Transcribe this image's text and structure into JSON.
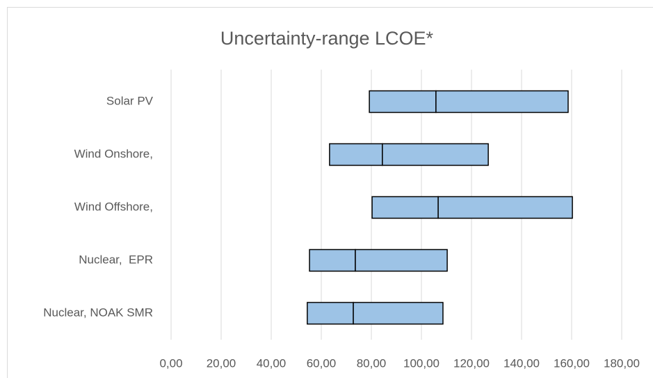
{
  "chart_data": {
    "type": "floating-bar",
    "title": "Uncertainty-range LCOE*",
    "categories": [
      "Solar PV",
      "Wind Onshore,",
      "Wind Offshore,",
      "Nuclear,  EPR",
      "Nuclear, NOAK SMR"
    ],
    "low": [
      79.2,
      63.3,
      80.3,
      55.3,
      54.4
    ],
    "mid": [
      105.8,
      84.4,
      106.7,
      73.6,
      72.8
    ],
    "high": [
      158.6,
      126.7,
      160.3,
      110.3,
      108.6
    ],
    "color": "#9dc3e6",
    "xlim": [
      0,
      180
    ],
    "xticks": [
      {
        "value": 0,
        "label": "0,00"
      },
      {
        "value": 20,
        "label": "20,00"
      },
      {
        "value": 40,
        "label": "40,00"
      },
      {
        "value": 60,
        "label": "60,00"
      },
      {
        "value": 80,
        "label": "80,00"
      },
      {
        "value": 100,
        "label": "100,00"
      },
      {
        "value": 120,
        "label": "120,00"
      },
      {
        "value": 140,
        "label": "140,00"
      },
      {
        "value": 160,
        "label": "160,00"
      },
      {
        "value": 180,
        "label": "180,00"
      }
    ],
    "grid": true
  }
}
